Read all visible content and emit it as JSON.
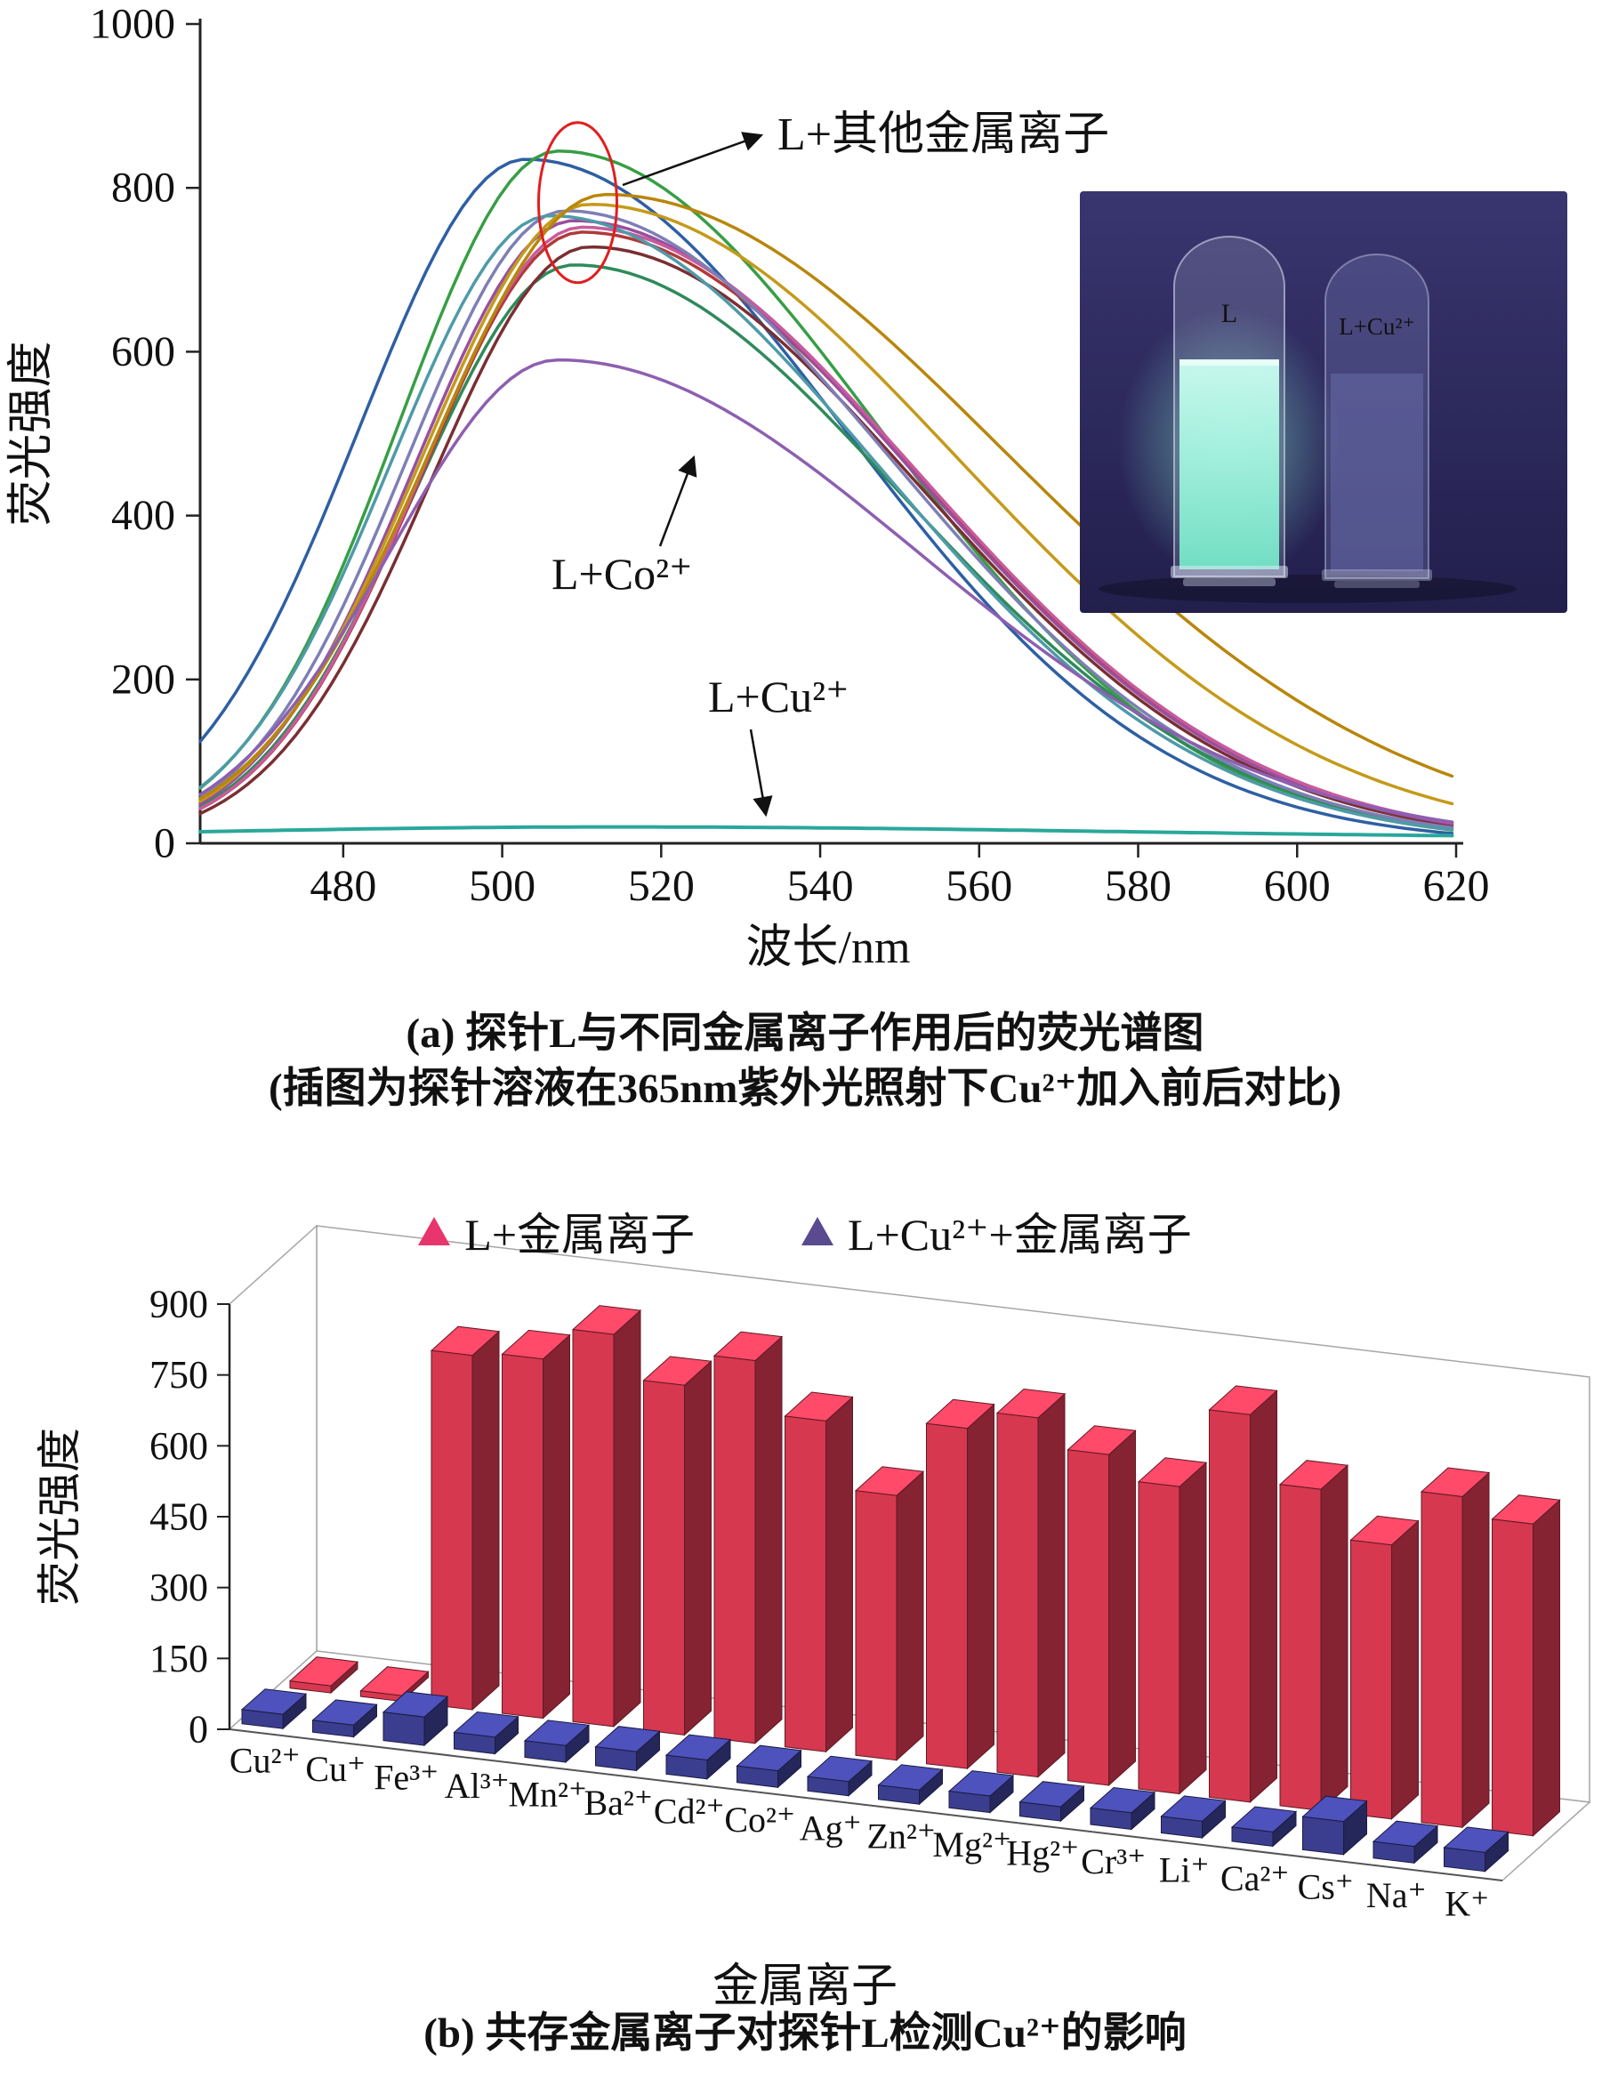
{
  "chart_data": [
    {
      "type": "line",
      "panel": "a",
      "xlabel": "波长/nm",
      "ylabel": "荧光强度",
      "xlim": [
        462,
        620
      ],
      "ylim": [
        0,
        1000
      ],
      "x_ticks": [
        480,
        500,
        520,
        540,
        560,
        580,
        600,
        620
      ],
      "y_ticks": [
        0,
        200,
        400,
        600,
        800,
        1000
      ],
      "curves_other": {
        "label": "L+其他金属离子",
        "items": [
          {
            "color": "#2e5fa3",
            "peak_nm": 503,
            "peak_intensity": 835,
            "sigma_left": 21,
            "sigma_right": 40
          },
          {
            "color": "#379e45",
            "peak_nm": 507,
            "peak_intensity": 845,
            "sigma_left": 20,
            "sigma_right": 40
          },
          {
            "color": "#2f8a5a",
            "peak_nm": 509,
            "peak_intensity": 706,
            "sigma_left": 20,
            "sigma_right": 41
          },
          {
            "color": "#7a2f33",
            "peak_nm": 511,
            "peak_intensity": 728,
            "sigma_left": 20,
            "sigma_right": 41
          },
          {
            "color": "#b03a3a",
            "peak_nm": 510,
            "peak_intensity": 746,
            "sigma_left": 20,
            "sigma_right": 42
          },
          {
            "color": "#994f9e",
            "peak_nm": 509,
            "peak_intensity": 760,
            "sigma_left": 20,
            "sigma_right": 42
          },
          {
            "color": "#c75b9b",
            "peak_nm": 510,
            "peak_intensity": 752,
            "sigma_left": 20,
            "sigma_right": 42
          },
          {
            "color": "#7d7fb5",
            "peak_nm": 508,
            "peak_intensity": 772,
            "sigma_left": 20,
            "sigma_right": 41
          },
          {
            "color": "#4f9aa8",
            "peak_nm": 506,
            "peak_intensity": 766,
            "sigma_left": 20,
            "sigma_right": 41
          },
          {
            "color": "#c49a1a",
            "peak_nm": 511,
            "peak_intensity": 780,
            "sigma_left": 21,
            "sigma_right": 46
          },
          {
            "color": "#b8860b",
            "peak_nm": 513,
            "peak_intensity": 792,
            "sigma_left": 22,
            "sigma_right": 50
          }
        ]
      },
      "curve_co": {
        "label": "L+Co²⁺",
        "color": "#8d5fb0",
        "peak_nm": 507,
        "peak_intensity": 590,
        "sigma_left": 21,
        "sigma_right": 45
      },
      "curve_cu": {
        "label": "L+Cu²⁺",
        "color": "#2aa79b",
        "peak_nm": 514,
        "peak_intensity": 14,
        "baseline": 6,
        "sigma_left": 50,
        "sigma_right": 62
      },
      "annotations": {
        "other_ions_label": "L+其他金属离子",
        "co_label": "L+Co²⁺",
        "cu_label": "L+Cu²⁺",
        "ellipse_color": "#e01f1f"
      },
      "inset": {
        "left_vial_label": "L",
        "right_vial_label": "L+Cu²⁺",
        "left_vial_glow_color": "#8cf5d7",
        "background_color": "#2b2859"
      },
      "captions": [
        "(a) 探针L与不同金属离子作用后的荧光谱图",
        "(插图为探针溶液在365nm紫外光照射下Cu²⁺加入前后对比)"
      ]
    },
    {
      "type": "bar",
      "panel": "b",
      "projection": "3d",
      "categories": [
        "Cu²⁺",
        "Cu⁺",
        "Fe³⁺",
        "Al³⁺",
        "Mn²⁺",
        "Ba²⁺",
        "Cd²⁺",
        "Co²⁺",
        "Ag⁺",
        "Zn²⁺",
        "Mg²⁺",
        "Hg²⁺",
        "Cr³⁺",
        "Li⁺",
        "Ca²⁺",
        "Cs⁺",
        "Na⁺",
        "K⁺"
      ],
      "series": [
        {
          "name": "L+金属离子",
          "color": "#d63850",
          "legend_color": "#e8356d",
          "values": [
            15,
            12,
            750,
            760,
            830,
            740,
            810,
            700,
            560,
            720,
            760,
            700,
            650,
            820,
            680,
            580,
            700,
            660
          ]
        },
        {
          "name": "L+Cu²⁺+金属离子",
          "color": "#3b3e8f",
          "legend_color": "#5a4a90",
          "values": [
            30,
            25,
            60,
            35,
            35,
            40,
            40,
            35,
            30,
            30,
            35,
            30,
            35,
            35,
            30,
            70,
            35,
            40
          ]
        }
      ],
      "ylabel": "荧光强度",
      "xlabel": "金属离子",
      "y_ticks": [
        0,
        150,
        300,
        450,
        600,
        750,
        900
      ],
      "ylim": [
        0,
        900
      ],
      "caption": "(b) 共存金属离子对探针L检测Cu²⁺的影响"
    }
  ]
}
